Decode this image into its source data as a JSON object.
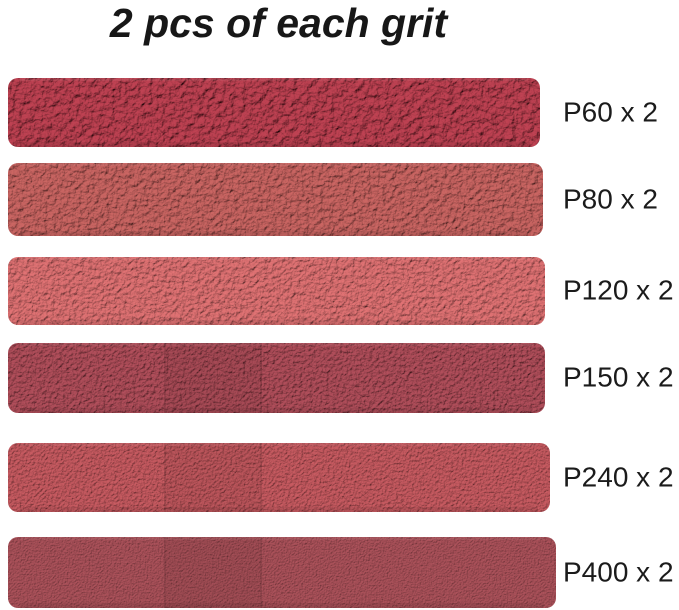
{
  "title": "2 pcs of each grit",
  "background_color": "#ffffff",
  "text_color": "#1b1b1b",
  "strips": [
    {
      "grit": "P60",
      "label": "P60 x 2",
      "quantity": 2,
      "base_color": "#9b3340",
      "highlight_color": "#c04252",
      "texture": "extra-coarse",
      "has_seams": false
    },
    {
      "grit": "P80",
      "label": "P80 x 2",
      "quantity": 2,
      "base_color": "#a65351",
      "highlight_color": "#cc6663",
      "texture": "coarse",
      "has_seams": false
    },
    {
      "grit": "P120",
      "label": "P120 x 2",
      "quantity": 2,
      "base_color": "#b95e5f",
      "highlight_color": "#e27374",
      "texture": "medium",
      "has_seams": false
    },
    {
      "grit": "P150",
      "label": "P150 x 2",
      "quantity": 2,
      "base_color": "#92414b",
      "highlight_color": "#b2505c",
      "texture": "medium-fine",
      "has_seams": true
    },
    {
      "grit": "P240",
      "label": "P240 x 2",
      "quantity": 2,
      "base_color": "#a54b50",
      "highlight_color": "#c95c62",
      "texture": "fine",
      "has_seams": true
    },
    {
      "grit": "P400",
      "label": "P400 x 2",
      "quantity": 2,
      "base_color": "#8f434b",
      "highlight_color": "#ad525b",
      "texture": "very-fine",
      "has_seams": true
    }
  ]
}
